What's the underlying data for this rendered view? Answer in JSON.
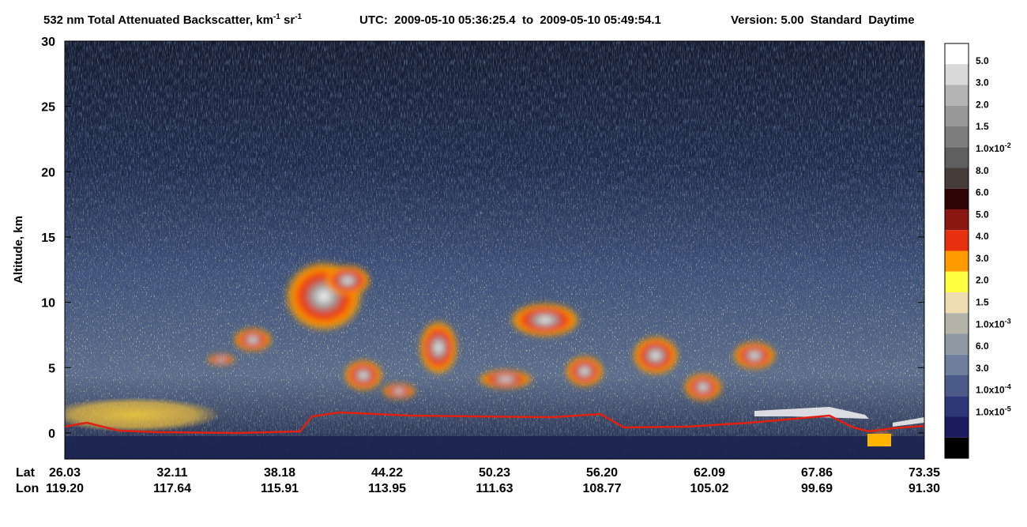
{
  "chart_data": {
    "type": "heatmap",
    "title": {
      "text": "532 nm Total Attenuated Backscatter, km",
      "exp1": "-1",
      "unit2": " sr",
      "exp2": "-1"
    },
    "time_range": "UTC:  2009-05-10 05:36:25.4  to  2009-05-10 05:49:54.1",
    "version": "Version: 5.00  Standard  Daytime",
    "ylabel": "Altitude, km",
    "ylim": [
      -2,
      30
    ],
    "yticks": [
      0,
      5,
      10,
      15,
      20,
      25,
      30
    ],
    "x_label_rows": [
      {
        "name": "Lat",
        "labels": [
          "26.03",
          "32.11",
          "38.18",
          "44.22",
          "50.23",
          "56.20",
          "62.09",
          "67.86",
          "73.35"
        ]
      },
      {
        "name": "Lon",
        "labels": [
          "119.20",
          "117.64",
          "115.91",
          "113.95",
          "111.63",
          "108.77",
          "105.02",
          "99.69",
          "91.30"
        ]
      }
    ],
    "colorbar": {
      "colors": [
        "#ffffff",
        "#d9d9d9",
        "#b4b4b4",
        "#999999",
        "#7d7d7d",
        "#5f5f5f",
        "#463c3a",
        "#2e0404",
        "#8a1712",
        "#e8300f",
        "#ff9a00",
        "#ffff40",
        "#ecdcb0",
        "#b3b3a8",
        "#8f99a3",
        "#6d7f9c",
        "#4a5b8a",
        "#2c3878",
        "#1c1c60",
        "#000000"
      ],
      "labels": [
        "5.0",
        "3.0",
        "2.0",
        "1.5",
        {
          "text": "1.0x10",
          "exp": "-2"
        },
        "8.0",
        "6.0",
        "5.0",
        "4.0",
        "3.0",
        "2.0",
        "1.5",
        {
          "text": "1.0x10",
          "exp": "-3"
        },
        "6.0",
        "3.0",
        {
          "text": "1.0x10",
          "exp": "-4"
        },
        {
          "text": "1.0x10",
          "exp": "-5"
        }
      ]
    }
  }
}
